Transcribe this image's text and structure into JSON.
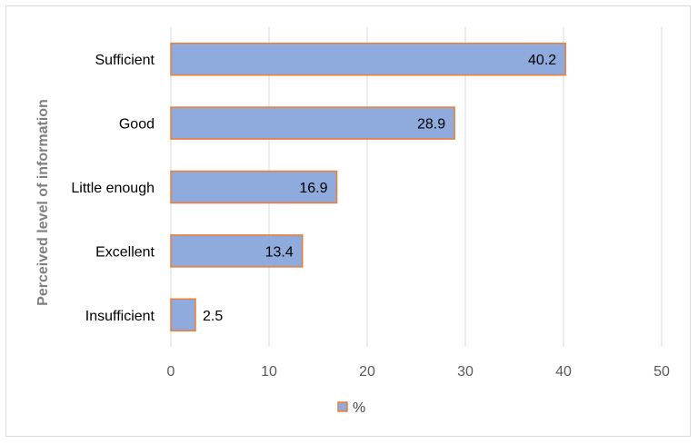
{
  "chart_data": {
    "type": "bar",
    "orientation": "horizontal",
    "categories": [
      "Sufficient",
      "Good",
      "Little enough",
      "Excellent",
      "Insufficient"
    ],
    "series": [
      {
        "name": "%",
        "values": [
          40.2,
          28.9,
          16.9,
          13.4,
          2.5
        ]
      }
    ],
    "data_labels": [
      "40.2",
      "28.9",
      "16.9",
      "13.4",
      "2.5"
    ],
    "xlim": [
      0,
      50
    ],
    "x_ticks": [
      "0",
      "10",
      "20",
      "30",
      "40",
      "50"
    ],
    "ylabel": "Perceived level of information",
    "xlabel": "",
    "grid": "vertical",
    "legend": "bottom",
    "colors": {
      "bar_fill": "#8faadc",
      "bar_stroke": "#ed7d31",
      "grid": "#d9d9d9"
    }
  }
}
